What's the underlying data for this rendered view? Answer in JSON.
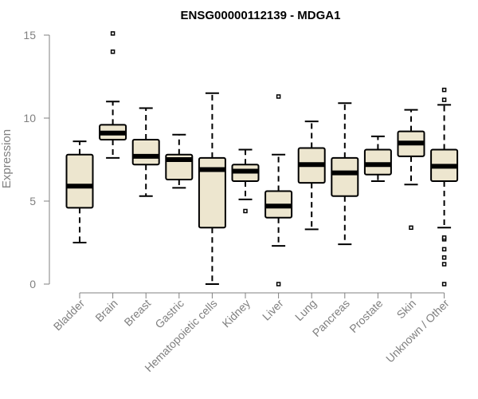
{
  "chart_data": {
    "type": "boxplot",
    "title": "ENSG00000112139 - MDGA1",
    "xlabel": "",
    "ylabel": "Expression",
    "ylim": [
      0,
      15
    ],
    "yticks": [
      0,
      5,
      10,
      15
    ],
    "grid": false,
    "box_fill": "#ede6cf",
    "categories": [
      "Bladder",
      "Brain",
      "Breast",
      "Gastric",
      "Hematopoietic cells",
      "Kidney",
      "Liver",
      "Lung",
      "Pancreas",
      "Prostate",
      "Skin",
      "Unknown / Other"
    ],
    "boxes": [
      {
        "category": "Bladder",
        "whisker_low": 2.5,
        "q1": 4.6,
        "median": 5.9,
        "q3": 7.8,
        "whisker_high": 8.6,
        "outliers": []
      },
      {
        "category": "Brain",
        "whisker_low": 7.6,
        "q1": 8.7,
        "median": 9.1,
        "q3": 9.6,
        "whisker_high": 11.0,
        "outliers": [
          14.0,
          15.1
        ]
      },
      {
        "category": "Breast",
        "whisker_low": 5.3,
        "q1": 7.2,
        "median": 7.7,
        "q3": 8.7,
        "whisker_high": 10.6,
        "outliers": []
      },
      {
        "category": "Gastric",
        "whisker_low": 5.8,
        "q1": 6.3,
        "median": 7.5,
        "q3": 7.8,
        "whisker_high": 9.0,
        "outliers": []
      },
      {
        "category": "Hematopoietic cells",
        "whisker_low": 0.0,
        "q1": 3.4,
        "median": 6.9,
        "q3": 7.6,
        "whisker_high": 11.5,
        "outliers": []
      },
      {
        "category": "Kidney",
        "whisker_low": 5.1,
        "q1": 6.2,
        "median": 6.8,
        "q3": 7.2,
        "whisker_high": 8.1,
        "outliers": [
          4.4
        ]
      },
      {
        "category": "Liver",
        "whisker_low": 2.3,
        "q1": 4.0,
        "median": 4.7,
        "q3": 5.6,
        "whisker_high": 7.8,
        "outliers": [
          0.0,
          11.3
        ]
      },
      {
        "category": "Lung",
        "whisker_low": 3.3,
        "q1": 6.1,
        "median": 7.2,
        "q3": 8.2,
        "whisker_high": 9.8,
        "outliers": []
      },
      {
        "category": "Pancreas",
        "whisker_low": 2.4,
        "q1": 5.3,
        "median": 6.7,
        "q3": 7.6,
        "whisker_high": 10.9,
        "outliers": []
      },
      {
        "category": "Prostate",
        "whisker_low": 6.2,
        "q1": 6.6,
        "median": 7.2,
        "q3": 8.1,
        "whisker_high": 8.9,
        "outliers": []
      },
      {
        "category": "Skin",
        "whisker_low": 6.0,
        "q1": 7.7,
        "median": 8.5,
        "q3": 9.2,
        "whisker_high": 10.5,
        "outliers": [
          3.4
        ]
      },
      {
        "category": "Unknown / Other",
        "whisker_low": 3.4,
        "q1": 6.2,
        "median": 7.1,
        "q3": 8.1,
        "whisker_high": 10.8,
        "outliers": [
          0.0,
          1.2,
          1.6,
          2.1,
          2.7,
          2.8,
          11.1,
          11.7
        ]
      }
    ]
  }
}
